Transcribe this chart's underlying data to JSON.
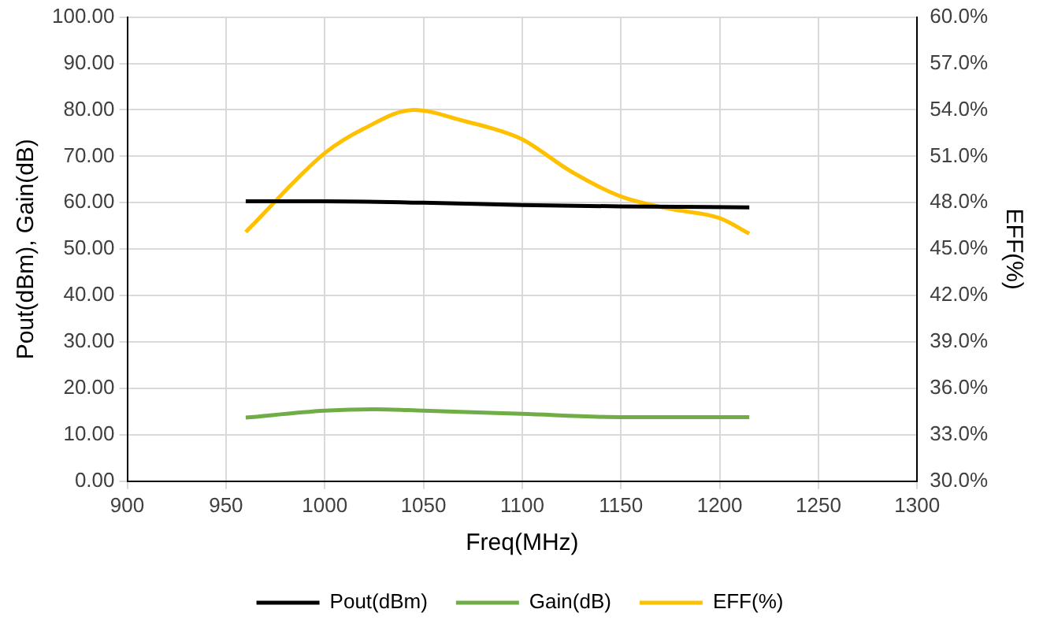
{
  "chart_data": {
    "type": "line",
    "xlabel": "Freq(MHz)",
    "ylabel": "Pout(dBm), Gain(dB)",
    "y2label": "EFF(%)",
    "xlim": [
      900,
      1300
    ],
    "xticks": [
      900,
      950,
      1000,
      1050,
      1100,
      1150,
      1200,
      1250,
      1300
    ],
    "ylim": [
      0,
      100
    ],
    "yticks": [
      {
        "value": 0,
        "label": "0.00"
      },
      {
        "value": 10,
        "label": "10.00"
      },
      {
        "value": 20,
        "label": "20.00"
      },
      {
        "value": 30,
        "label": "30.00"
      },
      {
        "value": 40,
        "label": "40.00"
      },
      {
        "value": 50,
        "label": "50.00"
      },
      {
        "value": 60,
        "label": "60.00"
      },
      {
        "value": 70,
        "label": "70.00"
      },
      {
        "value": 80,
        "label": "80.00"
      },
      {
        "value": 90,
        "label": "90.00"
      },
      {
        "value": 100,
        "label": "100.00"
      }
    ],
    "y2lim": [
      30,
      60
    ],
    "y2ticks": [
      {
        "value": 30,
        "label": "30.0%"
      },
      {
        "value": 33,
        "label": "33.0%"
      },
      {
        "value": 36,
        "label": "36.0%"
      },
      {
        "value": 39,
        "label": "39.0%"
      },
      {
        "value": 42,
        "label": "42.0%"
      },
      {
        "value": 45,
        "label": "45.0%"
      },
      {
        "value": 48,
        "label": "48.0%"
      },
      {
        "value": 51,
        "label": "51.0%"
      },
      {
        "value": 54,
        "label": "54.0%"
      },
      {
        "value": 57,
        "label": "57.0%"
      },
      {
        "value": 60,
        "label": "60.0%"
      }
    ],
    "grid": true,
    "legend": "bottom",
    "marker": "none",
    "line_style": "solid",
    "series": [
      {
        "name": "Pout(dBm)",
        "color": "#000000",
        "x": [
          960,
          1000,
          1050,
          1100,
          1150,
          1215
        ],
        "values": [
          60.3,
          60.3,
          60.0,
          59.5,
          59.2,
          59.0
        ]
      },
      {
        "name": "Gain(dB)",
        "color": "#70ad47",
        "x": [
          960,
          1000,
          1025,
          1050,
          1100,
          1150,
          1215
        ],
        "values": [
          13.7,
          15.2,
          15.5,
          15.2,
          14.5,
          13.8,
          13.8
        ]
      },
      {
        "name": "EFF(%)",
        "color": "#ffc000",
        "axis": "y2",
        "x": [
          960,
          1000,
          1020,
          1045,
          1070,
          1090,
          1100,
          1125,
          1150,
          1175,
          1200,
          1215
        ],
        "values": [
          46.1,
          51.2,
          52.8,
          54.0,
          53.3,
          52.6,
          52.1,
          50.0,
          48.4,
          47.6,
          47.0,
          46.0
        ]
      }
    ]
  }
}
